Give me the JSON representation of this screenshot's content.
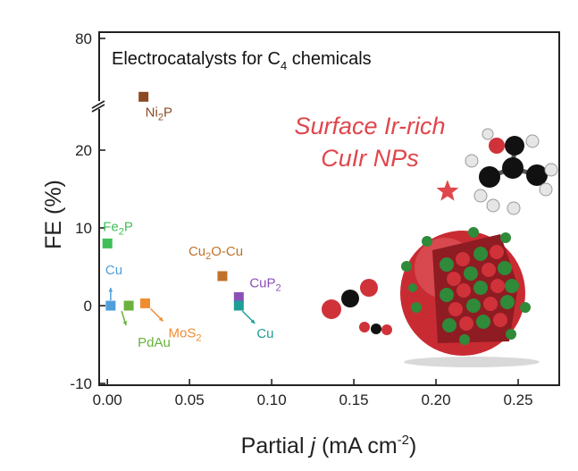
{
  "chart_data": {
    "type": "scatter",
    "title": "Electrocatalysts for C4 chemicals",
    "title_parts": {
      "main": "Electrocatalysts for C",
      "sub": "4",
      "tail": " chemicals"
    },
    "xlabel": "Partial j (mA cm-2)",
    "xlabel_parts": {
      "pre": "Partial ",
      "j": "j",
      "mid": " (mA cm",
      "sup": "-2",
      "post": ")"
    },
    "ylabel": "FE (%)",
    "xlim": [
      -0.005,
      0.275
    ],
    "ylim": [
      -10,
      80
    ],
    "y_axis_break": true,
    "x_ticks": [
      "0.00",
      "0.05",
      "0.10",
      "0.15",
      "0.20",
      "0.25"
    ],
    "y_ticks": [
      "80",
      "20",
      "10",
      "0",
      "-10"
    ],
    "grid": false,
    "highlight": {
      "label_line1": "Surface Ir-rich",
      "label_line2": "CuIr NPs",
      "x": 0.207,
      "y": 14.7,
      "color": "#e0464c",
      "marker": "star"
    },
    "points": [
      {
        "name": "Ni2P",
        "label_main": "Ni",
        "label_sub": "2",
        "label_tail": "P",
        "x": 0.022,
        "y": 50,
        "color": "#8b4a24"
      },
      {
        "name": "Fe2P",
        "label_main": "Fe",
        "label_sub": "2",
        "label_tail": "P",
        "x": 0.0,
        "y": 8,
        "color": "#3fbf56"
      },
      {
        "name": "Cu (blue)",
        "label_main": "Cu",
        "label_sub": "",
        "label_tail": "",
        "x": 0.002,
        "y": 0,
        "color": "#4f9fdc"
      },
      {
        "name": "PdAu",
        "label_main": "PdAu",
        "label_sub": "",
        "label_tail": "",
        "x": 0.013,
        "y": 0,
        "color": "#6ab23c"
      },
      {
        "name": "MoS2",
        "label_main": "MoS",
        "label_sub": "2",
        "label_tail": "",
        "x": 0.023,
        "y": 0.3,
        "color": "#f08c30"
      },
      {
        "name": "Cu2O-Cu",
        "label_main": "Cu",
        "label_sub": "2",
        "label_tail": "O-Cu",
        "x": 0.07,
        "y": 3.8,
        "color": "#c0732a"
      },
      {
        "name": "CuP2",
        "label_main": "CuP",
        "label_sub": "2",
        "label_tail": "",
        "x": 0.08,
        "y": 1.1,
        "color": "#8b50b8"
      },
      {
        "name": "Cu (teal)",
        "label_main": "Cu",
        "label_sub": "",
        "label_tail": "",
        "x": 0.08,
        "y": 0,
        "color": "#1f9e98"
      }
    ],
    "colors": {
      "axis": "#222222",
      "sphere": "#c92b33",
      "atom_green": "#2f8a3a",
      "atom_red": "#d0323a",
      "atom_black": "#111111",
      "atom_white": "#e6e6e6"
    }
  }
}
